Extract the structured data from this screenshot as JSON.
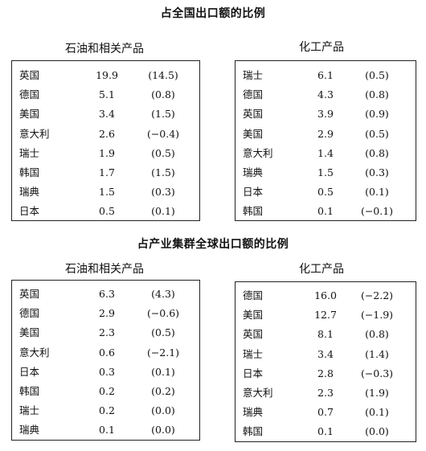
{
  "sections": [
    {
      "title": "占全国出口额的比例",
      "panels": [
        {
          "title": "石油和相关产品",
          "rows": [
            {
              "country": "英国",
              "value": "19.9",
              "change": "(14.5)"
            },
            {
              "country": "德国",
              "value": "5.1",
              "change": "(0.8)"
            },
            {
              "country": "美国",
              "value": "3.4",
              "change": "(1.5)"
            },
            {
              "country": "意大利",
              "value": "2.6",
              "change": "(−0.4)"
            },
            {
              "country": "瑞士",
              "value": "1.9",
              "change": "(0.5)"
            },
            {
              "country": "韩国",
              "value": "1.7",
              "change": "(1.5)"
            },
            {
              "country": "瑞典",
              "value": "1.5",
              "change": "(0.3)"
            },
            {
              "country": "日本",
              "value": "0.5",
              "change": "(0.1)"
            }
          ]
        },
        {
          "title": "化工产品",
          "rows": [
            {
              "country": "瑞士",
              "value": "6.1",
              "change": "(0.5)"
            },
            {
              "country": "德国",
              "value": "4.3",
              "change": "(0.8)"
            },
            {
              "country": "英国",
              "value": "3.9",
              "change": "(0.9)"
            },
            {
              "country": "美国",
              "value": "2.9",
              "change": "(0.5)"
            },
            {
              "country": "意大利",
              "value": "1.4",
              "change": "(0.8)"
            },
            {
              "country": "瑞典",
              "value": "1.5",
              "change": "(0.3)"
            },
            {
              "country": "日本",
              "value": "0.5",
              "change": "(0.1)"
            },
            {
              "country": "韩国",
              "value": "0.1",
              "change": "(−0.1)"
            }
          ]
        }
      ]
    },
    {
      "title": "占产业集群全球出口额的比例",
      "panels": [
        {
          "title": "石油和相关产品",
          "rows": [
            {
              "country": "英国",
              "value": "6.3",
              "change": "(4.3)"
            },
            {
              "country": "德国",
              "value": "2.9",
              "change": "(−0.6)"
            },
            {
              "country": "美国",
              "value": "2.3",
              "change": "(0.5)"
            },
            {
              "country": "意大利",
              "value": "0.6",
              "change": "(−2.1)"
            },
            {
              "country": "日本",
              "value": "0.3",
              "change": "(0.1)"
            },
            {
              "country": "韩国",
              "value": "0.2",
              "change": "(0.2)"
            },
            {
              "country": "瑞士",
              "value": "0.2",
              "change": "(0.0)"
            },
            {
              "country": "瑞典",
              "value": "0.1",
              "change": "(0.0)"
            }
          ]
        },
        {
          "title": "化工产品",
          "rows": [
            {
              "country": "德国",
              "value": "16.0",
              "change": "(−2.2)"
            },
            {
              "country": "美国",
              "value": "12.7",
              "change": "(−1.9)"
            },
            {
              "country": "英国",
              "value": "8.1",
              "change": "(0.8)"
            },
            {
              "country": "瑞士",
              "value": "3.4",
              "change": "(1.4)"
            },
            {
              "country": "日本",
              "value": "2.8",
              "change": "(−0.3)"
            },
            {
              "country": "意大利",
              "value": "2.3",
              "change": "(1.9)"
            },
            {
              "country": "瑞典",
              "value": "0.7",
              "change": "(0.1)"
            },
            {
              "country": "韩国",
              "value": "0.1",
              "change": "(0.0)"
            }
          ]
        }
      ]
    }
  ]
}
